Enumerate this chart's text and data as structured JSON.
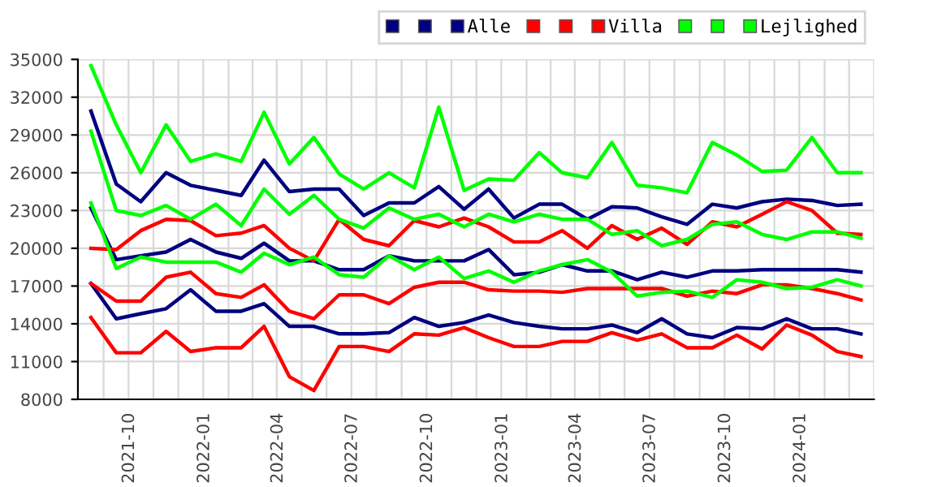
{
  "chart_data": {
    "type": "line",
    "x": [
      "2021-08-15",
      "2021-09-15",
      "2021-10-15",
      "2021-11-15",
      "2021-12-15",
      "2022-01-15",
      "2022-02-15",
      "2022-03-15",
      "2022-04-15",
      "2022-05-15",
      "2022-06-15",
      "2022-07-15",
      "2022-08-15",
      "2022-09-15",
      "2022-10-15",
      "2022-11-15",
      "2022-12-15",
      "2023-01-15",
      "2023-02-15",
      "2023-03-15",
      "2023-04-15",
      "2023-05-15",
      "2023-06-15",
      "2023-07-15",
      "2023-08-15",
      "2023-09-15",
      "2023-10-15",
      "2023-11-15",
      "2023-12-15",
      "2024-01-15",
      "2024-02-15",
      "2024-03-15"
    ],
    "series": [
      {
        "color": "#000080",
        "values": [
          17200,
          14400,
          14800,
          15200,
          16700,
          15000,
          15000,
          15600,
          13800,
          13800,
          13200,
          13200,
          13300,
          14500,
          13800,
          14100,
          14700,
          14100,
          13800,
          13600,
          13600,
          13900,
          13300,
          14400,
          13200,
          12900,
          13700,
          13600,
          14400,
          13600,
          13600,
          13200
        ]
      },
      {
        "color": "#000080",
        "values": [
          23200,
          19100,
          19400,
          19700,
          20700,
          19700,
          19200,
          20400,
          19000,
          19000,
          18300,
          18300,
          19400,
          19000,
          19000,
          19000,
          19900,
          17900,
          18100,
          18700,
          18200,
          18200,
          17500,
          18100,
          17700,
          18200,
          18200,
          18300,
          18300,
          18300,
          18300,
          18100
        ]
      },
      {
        "name": "Alle",
        "color": "#000080",
        "values": [
          30900,
          25100,
          23700,
          26000,
          25000,
          24600,
          24200,
          27000,
          24500,
          24700,
          24700,
          22600,
          23600,
          23600,
          24900,
          23100,
          24700,
          22400,
          23500,
          23500,
          22300,
          23300,
          23200,
          22500,
          21900,
          23500,
          23200,
          23700,
          23900,
          23800,
          23400,
          23500
        ]
      },
      {
        "color": "#ff0000",
        "values": [
          14500,
          11700,
          11700,
          13400,
          11800,
          12100,
          12100,
          13800,
          9800,
          8700,
          12200,
          12200,
          11800,
          13200,
          13100,
          13700,
          12900,
          12200,
          12200,
          12600,
          12600,
          13300,
          12700,
          13200,
          12100,
          12100,
          13100,
          12000,
          13900,
          13100,
          11800,
          11400
        ]
      },
      {
        "color": "#ff0000",
        "values": [
          17200,
          15800,
          15800,
          17700,
          18100,
          16400,
          16100,
          17100,
          15000,
          14400,
          16300,
          16300,
          15600,
          16900,
          17300,
          17300,
          16700,
          16600,
          16600,
          16500,
          16800,
          16800,
          16800,
          16800,
          16200,
          16600,
          16400,
          17100,
          17100,
          16800,
          16400,
          15900
        ]
      },
      {
        "name": "Villa",
        "color": "#ff0000",
        "values": [
          20000,
          19900,
          21400,
          22300,
          22200,
          21000,
          21200,
          21800,
          20000,
          19000,
          22300,
          20700,
          20200,
          22200,
          21700,
          22400,
          21700,
          20500,
          20500,
          21400,
          20000,
          21800,
          20700,
          21600,
          20300,
          22100,
          21700,
          22700,
          23700,
          23000,
          21200,
          21100
        ]
      },
      {
        "color": "#00ff00",
        "values": [
          23600,
          18400,
          19300,
          18900,
          18900,
          18900,
          18100,
          19600,
          18700,
          19300,
          17900,
          17700,
          19400,
          18300,
          19300,
          17600,
          18200,
          17300,
          18200,
          18700,
          19100,
          18100,
          16200,
          16500,
          16600,
          16100,
          17500,
          17300,
          16800,
          16900,
          17500,
          17000
        ]
      },
      {
        "color": "#00ff00",
        "values": [
          29300,
          23000,
          22600,
          23400,
          22300,
          23500,
          21800,
          24700,
          22700,
          24200,
          22300,
          21600,
          23200,
          22300,
          22700,
          21700,
          22700,
          22100,
          22700,
          22300,
          22300,
          21100,
          21400,
          20200,
          20700,
          21900,
          22100,
          21100,
          20700,
          21300,
          21300,
          20800
        ]
      },
      {
        "name": "Lejlighed",
        "color": "#00ff00",
        "values": [
          34500,
          29800,
          26000,
          29800,
          26900,
          27500,
          26900,
          30800,
          26700,
          28800,
          25900,
          24700,
          26000,
          24800,
          31200,
          24600,
          25500,
          25400,
          27600,
          26000,
          25600,
          28400,
          25000,
          24800,
          24400,
          28400,
          27400,
          26100,
          26200,
          28800,
          26000,
          26000
        ]
      }
    ],
    "xlim": [
      "2021-07-30",
      "2024-03-31"
    ],
    "xticks": [
      "2021-10",
      "2022-01",
      "2022-04",
      "2022-07",
      "2022-10",
      "2023-01",
      "2023-04",
      "2023-07",
      "2023-10",
      "2024-01"
    ],
    "ylim": [
      8000,
      35000
    ],
    "yticks": [
      8000,
      11000,
      14000,
      17000,
      20000,
      23000,
      26000,
      29000,
      32000,
      35000
    ],
    "grid": true,
    "legend": "top right",
    "marker": "none",
    "line_style": "solid"
  }
}
